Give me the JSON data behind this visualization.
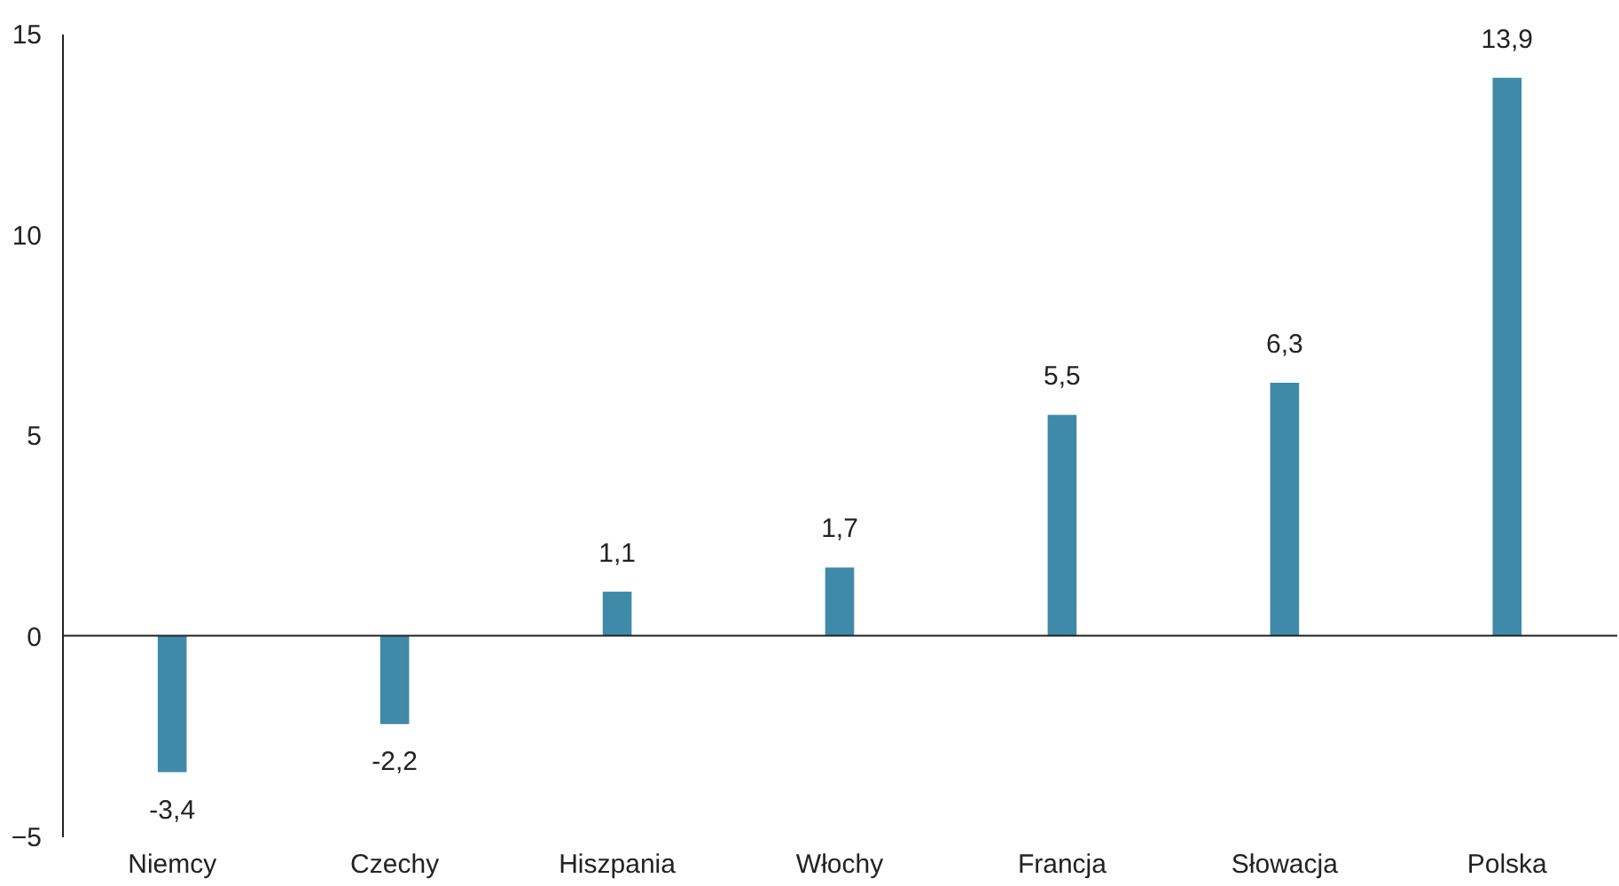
{
  "chart_data": {
    "type": "bar",
    "categories": [
      "Niemcy",
      "Czechy",
      "Hiszpania",
      "Włochy",
      "Francja",
      "Słowacja",
      "Polska"
    ],
    "values": [
      -3.4,
      -2.2,
      1.1,
      1.7,
      5.5,
      6.3,
      13.9
    ],
    "value_labels": [
      "-3,4",
      "-2,2",
      "1,1",
      "1,7",
      "5,5",
      "6,3",
      "13,9"
    ],
    "color": "#3f8aa8",
    "ylim": [
      -5,
      15
    ],
    "yticks": [
      -5,
      0,
      5,
      10,
      15
    ],
    "ref_lines": [
      {
        "axis": "y",
        "value": 0,
        "color": "#222222"
      }
    ],
    "grid": false
  }
}
